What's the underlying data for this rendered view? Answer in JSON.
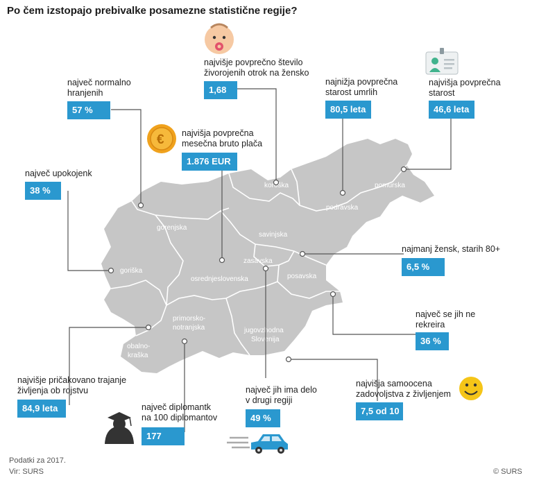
{
  "title": "Po čem izstopajo prebivalke posamezne statistične regije?",
  "regions": {
    "koroska": "koroška",
    "pomurska": "pomurska",
    "podravska": "podravska",
    "gorenjska": "gorenjska",
    "savinjska": "savinjska",
    "zasavska": "zasavska",
    "goriska": "goriška",
    "osrednjeslovenska": "osrednjeslovenska",
    "posavska": "posavska",
    "primorsko": "primorsko-",
    "notranjska": "notranjska",
    "jugovzhodna": "jugovzhodna",
    "slovenija": "Slovenija",
    "obalno": "obalno-",
    "kraska": "kraška"
  },
  "facts": {
    "hranjenih": {
      "label": "največ normalno\nhranjenih",
      "value": "57 %"
    },
    "otrok": {
      "label": "najvišje povprečno število\nživorojenih otrok na žensko",
      "value": "1,68"
    },
    "umrlih": {
      "label": "najnižja povprečna\nstarost umrlih",
      "value": "80,5 leta"
    },
    "starost": {
      "label": "najvišja povprečna\nstarost",
      "value": "46,6 leta"
    },
    "placa": {
      "label": "najvišja povprečna\nmesečna bruto plača",
      "value": "1.876 EUR"
    },
    "upokojenk": {
      "label": "največ upokojenk",
      "value": "38 %"
    },
    "zensk80": {
      "label": "najmanj žensk, starih 80+",
      "value": "6,5 %"
    },
    "rekreira": {
      "label": "največ se jih ne\nrekreira",
      "value": "36 %"
    },
    "trajanje": {
      "label": "najvišje pričakovano trajanje\nživljenja ob rojstvu",
      "value": "84,9 leta"
    },
    "delo": {
      "label": "največ jih ima delo\nv drugi regiji",
      "value": "49 %"
    },
    "zadovoljstvo": {
      "label": "najvišja samoocena\nzadovoljstva z življenjem",
      "value": "7,5 od 10"
    },
    "diplomantk": {
      "label": "največ diplomantk\nna 100 diplomantov",
      "value": "177"
    }
  },
  "footer": {
    "line1": "Podatki za 2017.",
    "line2": "Vir: SURS",
    "copyright": "© SURS"
  },
  "colors": {
    "map": "#c6c6c6",
    "accent": "#2a98cf",
    "lines": "#555555"
  },
  "icons": [
    "baby-icon",
    "id-card-icon",
    "euro-coin-icon",
    "graduate-icon",
    "car-icon",
    "smiley-icon"
  ]
}
